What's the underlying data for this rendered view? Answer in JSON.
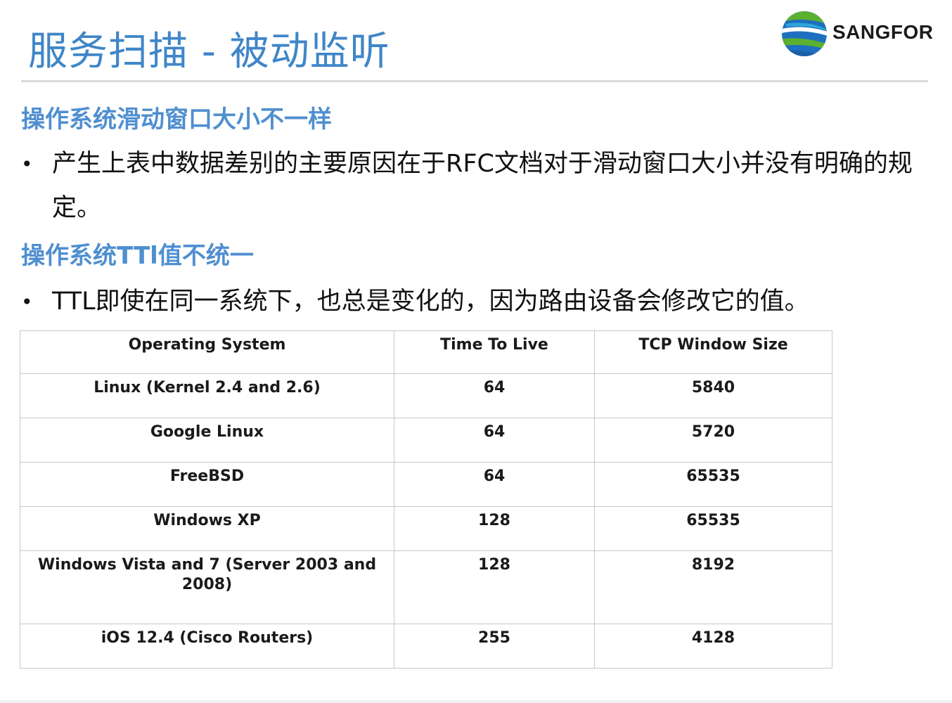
{
  "header": {
    "title": "服务扫描 - 被动监听",
    "logo_text": "SANGFOR"
  },
  "sections": [
    {
      "heading": "操作系统滑动窗口大小不一样",
      "bullet": "产生上表中数据差别的主要原因在于RFC文档对于滑动窗口大小并没有明确的规定。"
    },
    {
      "heading": "操作系统TTl值不统一",
      "bullet": "TTL即使在同一系统下，也总是变化的，因为路由设备会修改它的值。"
    }
  ],
  "bullet_symbol": "•",
  "table": {
    "headers": [
      "Operating System",
      "Time To Live",
      "TCP Window Size"
    ],
    "rows": [
      [
        "Linux (Kernel 2.4 and 2.6)",
        "64",
        "5840"
      ],
      [
        "Google Linux",
        "64",
        "5720"
      ],
      [
        "FreeBSD",
        "64",
        "65535"
      ],
      [
        "Windows XP",
        "128",
        "65535"
      ],
      [
        "Windows Vista and 7 (Server 2003 and 2008)",
        "128",
        "8192"
      ],
      [
        "iOS 12.4 (Cisco Routers)",
        "255",
        "4128"
      ]
    ]
  },
  "colors": {
    "title": "#3f86c8",
    "heading": "#4f8fd0",
    "logo_blue": "#1e6fc0",
    "logo_green": "#5bb030"
  }
}
